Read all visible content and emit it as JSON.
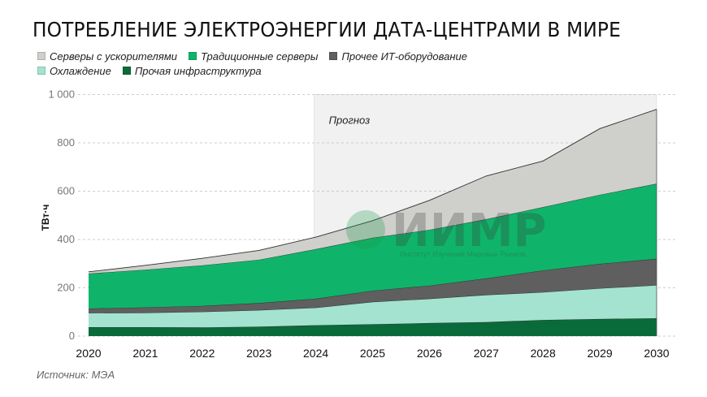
{
  "title": "ПОТРЕБЛЕНИЕ ЭЛЕКТРОЭНЕРГИИ ДАТА-ЦЕНТРАМИ В МИРЕ",
  "source": "Источник: МЭА",
  "watermark": {
    "main": "ИИМР",
    "sub": "Институт Изучения Мировых Рынков"
  },
  "legend": [
    {
      "label": "Серверы с ускорителями",
      "color": "#cfcfcc"
    },
    {
      "label": "Традиционные серверы",
      "color": "#0fb46a"
    },
    {
      "label": "Прочее ИТ-оборудование",
      "color": "#5f5f5f"
    },
    {
      "label": "Охлаждение",
      "color": "#a3e3cf"
    },
    {
      "label": "Прочая инфраструктура",
      "color": "#0a6b3a"
    }
  ],
  "chart_data": {
    "type": "area",
    "stacked": true,
    "title": "Потребление электроэнергии дата-центрами в мире",
    "xlabel": "",
    "ylabel": "ТВт·ч",
    "ylim": [
      0,
      1000
    ],
    "yticks": [
      "0",
      "200",
      "400",
      "600",
      "800",
      "1 000"
    ],
    "x": [
      2020,
      2021,
      2022,
      2023,
      2024,
      2025,
      2026,
      2027,
      2028,
      2029,
      2030
    ],
    "forecast_start": 2024,
    "forecast_label": "Прогноз",
    "grid": "horizontal dashed",
    "legend_position": "top-left",
    "series": [
      {
        "name": "Прочая инфраструктура",
        "color": "#0a6b3a",
        "values": [
          37,
          37,
          36,
          39,
          45,
          49,
          54,
          58,
          67,
          71,
          74
        ]
      },
      {
        "name": "Охлаждение",
        "color": "#a3e3cf",
        "values": [
          59,
          60,
          65,
          69,
          73,
          93,
          101,
          113,
          115,
          127,
          137
        ]
      },
      {
        "name": "Прочее ИТ-оборудование",
        "color": "#5f5f5f",
        "values": [
          18,
          22,
          24,
          29,
          37,
          46,
          54,
          68,
          90,
          101,
          109
        ]
      },
      {
        "name": "Традиционные серверы",
        "color": "#0fb46a",
        "values": [
          145,
          156,
          168,
          179,
          205,
          219,
          231,
          245,
          262,
          286,
          311
        ]
      },
      {
        "name": "Серверы с ускорителями",
        "color": "#cfcfcc",
        "values": [
          7,
          18,
          29,
          39,
          50,
          71,
          122,
          179,
          191,
          274,
          308
        ]
      }
    ],
    "totals": [
      266,
      293,
      322,
      355,
      410,
      478,
      562,
      663,
      725,
      859,
      939
    ]
  }
}
